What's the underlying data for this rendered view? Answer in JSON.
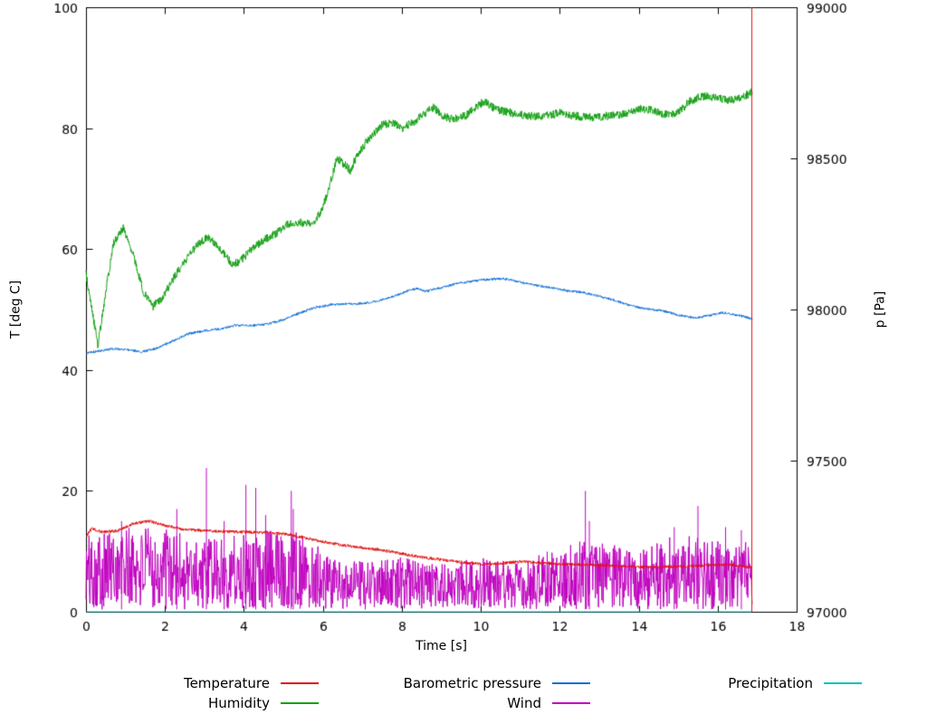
{
  "chart_data": {
    "type": "line",
    "title": "",
    "xlabel": "Time [s]",
    "ylabel_left": "T [deg C]",
    "ylabel_right": "p [Pa]",
    "x_range": [
      0,
      18
    ],
    "y_left_range": [
      0,
      100
    ],
    "y_right_range": [
      97000,
      99000
    ],
    "x_ticks": [
      0,
      2,
      4,
      6,
      8,
      10,
      12,
      14,
      16,
      18
    ],
    "y_left_ticks": [
      0,
      20,
      40,
      60,
      80,
      100
    ],
    "y_right_ticks": [
      97000,
      97500,
      98000,
      98500,
      99000
    ],
    "grid": false,
    "legend_position": "bottom",
    "x_data_end": 16.88,
    "end_marker": {
      "x": 16.85,
      "color": "#e01010"
    },
    "axis_color": "#000000",
    "series": [
      {
        "name": "Wind",
        "color": "#bf00bf",
        "axis": "left",
        "style": "noisy",
        "min": 0.4,
        "envelope": [
          [
            0,
            13
          ],
          [
            1,
            14
          ],
          [
            2,
            14
          ],
          [
            3,
            12
          ],
          [
            4,
            13
          ],
          [
            5,
            14
          ],
          [
            5.8,
            12
          ],
          [
            6.2,
            9
          ],
          [
            7,
            8.5
          ],
          [
            8,
            9
          ],
          [
            9,
            8
          ],
          [
            10,
            9
          ],
          [
            11,
            8
          ],
          [
            12,
            11
          ],
          [
            12.8,
            12
          ],
          [
            13.5,
            11
          ],
          [
            14,
            10
          ],
          [
            15,
            13
          ],
          [
            15.8,
            12
          ],
          [
            16.5,
            11
          ],
          [
            16.88,
            12
          ]
        ],
        "spikes": [
          [
            0.9,
            15
          ],
          [
            2.3,
            17
          ],
          [
            3.05,
            23.8
          ],
          [
            3.5,
            15
          ],
          [
            4.05,
            21
          ],
          [
            4.3,
            20.5
          ],
          [
            4.55,
            16
          ],
          [
            5.2,
            20
          ],
          [
            5.25,
            17
          ],
          [
            12.65,
            20
          ],
          [
            12.75,
            15
          ],
          [
            14.9,
            14
          ],
          [
            15.5,
            17.5
          ],
          [
            16.2,
            14
          ],
          [
            16.6,
            13.5
          ]
        ]
      },
      {
        "name": "Precipitation",
        "color": "#00c0c0",
        "axis": "left",
        "style": "line",
        "noise": 0,
        "points": [
          [
            0,
            0
          ],
          [
            16.88,
            0
          ]
        ]
      },
      {
        "name": "Temperature",
        "color": "#e01010",
        "axis": "left",
        "style": "line",
        "noise": 0.25,
        "points": [
          [
            0,
            12.5
          ],
          [
            0.15,
            13.8
          ],
          [
            0.4,
            13.2
          ],
          [
            0.8,
            13.4
          ],
          [
            1.2,
            14.6
          ],
          [
            1.6,
            15.0
          ],
          [
            2.0,
            14.3
          ],
          [
            2.5,
            13.6
          ],
          [
            3.0,
            13.4
          ],
          [
            3.5,
            13.3
          ],
          [
            4.0,
            13.2
          ],
          [
            4.5,
            13.1
          ],
          [
            5.0,
            12.9
          ],
          [
            5.5,
            12.3
          ],
          [
            6.0,
            11.6
          ],
          [
            6.5,
            11.0
          ],
          [
            7.0,
            10.6
          ],
          [
            7.5,
            10.2
          ],
          [
            8.0,
            9.6
          ],
          [
            8.5,
            9.0
          ],
          [
            9.0,
            8.6
          ],
          [
            9.5,
            8.2
          ],
          [
            10.0,
            7.9
          ],
          [
            10.5,
            8.0
          ],
          [
            11.0,
            8.3
          ],
          [
            11.5,
            8.1
          ],
          [
            12.0,
            7.9
          ],
          [
            12.5,
            7.8
          ],
          [
            13.0,
            7.7
          ],
          [
            13.5,
            7.6
          ],
          [
            14.0,
            7.4
          ],
          [
            14.5,
            7.4
          ],
          [
            15.0,
            7.5
          ],
          [
            15.5,
            7.6
          ],
          [
            16.0,
            7.8
          ],
          [
            16.5,
            7.7
          ],
          [
            16.88,
            7.3
          ]
        ]
      },
      {
        "name": "Humidity",
        "color": "#16a016",
        "axis": "left",
        "style": "line",
        "noise": 0.7,
        "points": [
          [
            0,
            56
          ],
          [
            0.15,
            50
          ],
          [
            0.3,
            44
          ],
          [
            0.5,
            53
          ],
          [
            0.7,
            61
          ],
          [
            0.95,
            63.5
          ],
          [
            1.2,
            59
          ],
          [
            1.45,
            53
          ],
          [
            1.7,
            50.5
          ],
          [
            1.95,
            52
          ],
          [
            2.2,
            55
          ],
          [
            2.5,
            58
          ],
          [
            2.8,
            60.5
          ],
          [
            3.1,
            62
          ],
          [
            3.4,
            60
          ],
          [
            3.7,
            57.5
          ],
          [
            3.9,
            58
          ],
          [
            4.2,
            60
          ],
          [
            4.5,
            61.5
          ],
          [
            4.8,
            62.5
          ],
          [
            5.1,
            64
          ],
          [
            5.4,
            64.5
          ],
          [
            5.7,
            64
          ],
          [
            5.95,
            66
          ],
          [
            6.15,
            70
          ],
          [
            6.35,
            75
          ],
          [
            6.55,
            74
          ],
          [
            6.7,
            73
          ],
          [
            6.9,
            76
          ],
          [
            7.2,
            78.5
          ],
          [
            7.5,
            80.5
          ],
          [
            7.8,
            81
          ],
          [
            8.0,
            80
          ],
          [
            8.3,
            81
          ],
          [
            8.6,
            82.5
          ],
          [
            8.8,
            83.5
          ],
          [
            9.0,
            82
          ],
          [
            9.3,
            81.5
          ],
          [
            9.6,
            82
          ],
          [
            9.9,
            83.5
          ],
          [
            10.1,
            84.5
          ],
          [
            10.4,
            83
          ],
          [
            10.8,
            82.5
          ],
          [
            11.2,
            82
          ],
          [
            11.6,
            82
          ],
          [
            12.0,
            82.5
          ],
          [
            12.4,
            82
          ],
          [
            12.8,
            81.8
          ],
          [
            13.2,
            82
          ],
          [
            13.6,
            82.3
          ],
          [
            14.0,
            83.3
          ],
          [
            14.3,
            83
          ],
          [
            14.6,
            82.3
          ],
          [
            15.0,
            82.5
          ],
          [
            15.3,
            84.5
          ],
          [
            15.6,
            85.3
          ],
          [
            16.0,
            85
          ],
          [
            16.3,
            84.6
          ],
          [
            16.6,
            85
          ],
          [
            16.88,
            86
          ]
        ]
      },
      {
        "name": "Barometric pressure",
        "color": "#0f6fd7",
        "axis": "right",
        "style": "line",
        "noise": 4,
        "points": [
          [
            0,
            97856
          ],
          [
            0.3,
            97862
          ],
          [
            0.7,
            97870
          ],
          [
            1.0,
            97868
          ],
          [
            1.4,
            97860
          ],
          [
            1.8,
            97872
          ],
          [
            2.2,
            97896
          ],
          [
            2.6,
            97920
          ],
          [
            3.0,
            97930
          ],
          [
            3.4,
            97936
          ],
          [
            3.8,
            97948
          ],
          [
            4.2,
            97946
          ],
          [
            4.6,
            97952
          ],
          [
            5.0,
            97966
          ],
          [
            5.4,
            97988
          ],
          [
            5.8,
            98006
          ],
          [
            6.2,
            98016
          ],
          [
            6.6,
            98018
          ],
          [
            7.0,
            98020
          ],
          [
            7.4,
            98028
          ],
          [
            7.8,
            98044
          ],
          [
            8.2,
            98064
          ],
          [
            8.4,
            98070
          ],
          [
            8.6,
            98060
          ],
          [
            9.0,
            98072
          ],
          [
            9.4,
            98086
          ],
          [
            9.8,
            98094
          ],
          [
            10.2,
            98100
          ],
          [
            10.6,
            98102
          ],
          [
            11.0,
            98090
          ],
          [
            11.4,
            98080
          ],
          [
            11.8,
            98072
          ],
          [
            12.2,
            98062
          ],
          [
            12.6,
            98056
          ],
          [
            13.0,
            98044
          ],
          [
            13.4,
            98030
          ],
          [
            13.8,
            98012
          ],
          [
            14.2,
            98002
          ],
          [
            14.6,
            97996
          ],
          [
            15.0,
            97982
          ],
          [
            15.4,
            97972
          ],
          [
            15.8,
            97980
          ],
          [
            16.1,
            97990
          ],
          [
            16.4,
            97984
          ],
          [
            16.7,
            97976
          ],
          [
            16.88,
            97968
          ]
        ]
      }
    ],
    "legend": [
      {
        "label": "Temperature",
        "color": "#e01010"
      },
      {
        "label": "Humidity",
        "color": "#16a016"
      },
      {
        "label": "Barometric pressure",
        "color": "#0f6fd7"
      },
      {
        "label": "Wind",
        "color": "#bf00bf"
      },
      {
        "label": "Precipitation",
        "color": "#00c0c0"
      }
    ]
  }
}
